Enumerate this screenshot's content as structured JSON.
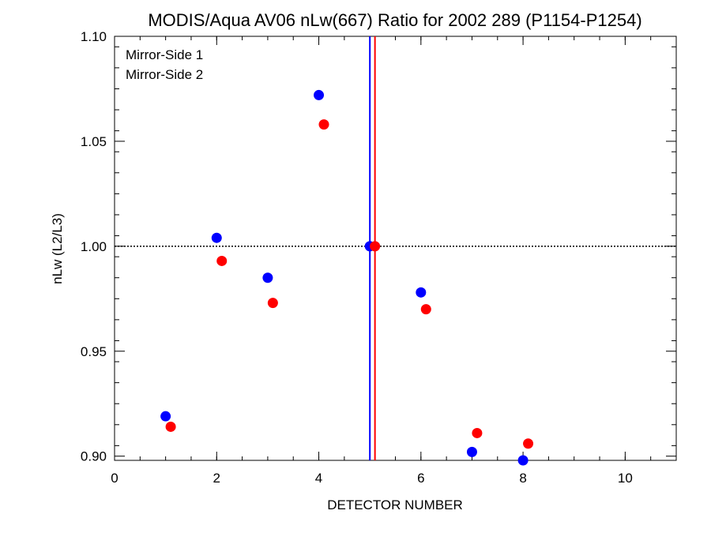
{
  "chart_data": {
    "type": "scatter",
    "title": "MODIS/Aqua AV06 nLw(667) Ratio for 2002 289 (P1154-P1254)",
    "xlabel": "DETECTOR NUMBER",
    "ylabel": "nLw (L2/L3)",
    "xlim": [
      0,
      11
    ],
    "ylim": [
      0.898,
      1.1
    ],
    "x_ticks": [
      0,
      2,
      4,
      6,
      8,
      10
    ],
    "x_tick_labels": [
      "0",
      "2",
      "4",
      "6",
      "8",
      "10"
    ],
    "y_ticks": [
      0.9,
      0.95,
      1.0,
      1.05,
      1.1
    ],
    "y_tick_labels": [
      "0.90",
      "0.95",
      "1.00",
      "1.05",
      "1.10"
    ],
    "reference_line_y": 1.0,
    "series": [
      {
        "name": "Mirror-Side 1",
        "color": "#0000ff",
        "x": [
          1,
          2,
          3,
          4,
          5,
          6,
          7,
          8
        ],
        "y": [
          0.919,
          1.004,
          0.985,
          1.072,
          1.0,
          0.978,
          0.902,
          0.898
        ]
      },
      {
        "name": "Mirror-Side 2",
        "color": "#ff0000",
        "x": [
          1.1,
          2.1,
          3.1,
          4.1,
          5.1,
          6.1,
          7.1,
          8.1
        ],
        "y": [
          0.914,
          0.993,
          0.973,
          1.058,
          1.0,
          0.97,
          0.911,
          0.906
        ]
      }
    ],
    "vertical_lines": [
      {
        "x": 5.0,
        "color": "#0000ff"
      },
      {
        "x": 5.1,
        "color": "#ff0000"
      }
    ],
    "legend_placement": "top-left",
    "grid": false
  }
}
